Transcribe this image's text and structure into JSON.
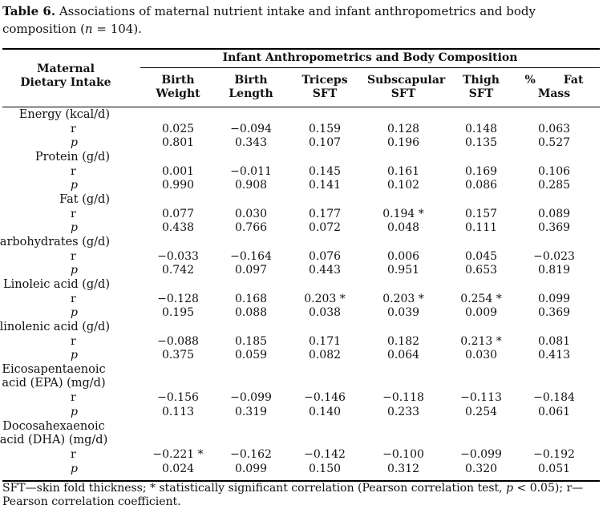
{
  "caption": {
    "label": "Table 6.",
    "text": " Associations of maternal nutrient intake and infant anthropometrics and body composition (",
    "n_symbol": "n",
    "n_text": " = 104)."
  },
  "header": {
    "row_header": "Maternal Dietary Intake",
    "group_header": "Infant Anthropometrics and Body Composition",
    "columns": [
      "Birth Weight",
      "Birth Length",
      "Triceps SFT",
      "Subscapular SFT",
      "Thigh SFT",
      "% Fat Mass"
    ]
  },
  "rows": [
    {
      "label": "Energy (kcal/d)",
      "r": [
        "0.025",
        "−0.094",
        "0.159",
        "0.128",
        "0.148",
        "0.063"
      ],
      "p": [
        "0.801",
        "0.343",
        "0.107",
        "0.196",
        "0.135",
        "0.527"
      ]
    },
    {
      "label": "Protein (g/d)",
      "r": [
        "0.001",
        "−0.011",
        "0.145",
        "0.161",
        "0.169",
        "0.106"
      ],
      "p": [
        "0.990",
        "0.908",
        "0.141",
        "0.102",
        "0.086",
        "0.285"
      ]
    },
    {
      "label": "Fat (g/d)",
      "r": [
        "0.077",
        "0.030",
        "0.177",
        "0.194 *",
        "0.157",
        "0.089"
      ],
      "p": [
        "0.438",
        "0.766",
        "0.072",
        "0.048",
        "0.111",
        "0.369"
      ]
    },
    {
      "label": "Carbohydrates (g/d)",
      "r": [
        "−0.033",
        "−0.164",
        "0.076",
        "0.006",
        "0.045",
        "−0.023"
      ],
      "p": [
        "0.742",
        "0.097",
        "0.443",
        "0.951",
        "0.653",
        "0.819"
      ]
    },
    {
      "label": "Linoleic acid (g/d)",
      "r": [
        "−0.128",
        "0.168",
        "0.203 *",
        "0.203 *",
        "0.254 *",
        "0.099"
      ],
      "p": [
        "0.195",
        "0.088",
        "0.038",
        "0.039",
        "0.009",
        "0.369"
      ]
    },
    {
      "label": "α-linolenic acid (g/d)",
      "r": [
        "−0.088",
        "0.185",
        "0.171",
        "0.182",
        "0.213 *",
        "0.081"
      ],
      "p": [
        "0.375",
        "0.059",
        "0.082",
        "0.064",
        "0.030",
        "0.413"
      ]
    },
    {
      "label": "Eicosapentaenoic acid (EPA) (mg/d)",
      "r": [
        "−0.156",
        "−0.099",
        "−0.146",
        "−0.118",
        "−0.113",
        "−0.184"
      ],
      "p": [
        "0.113",
        "0.319",
        "0.140",
        "0.233",
        "0.254",
        "0.061"
      ]
    },
    {
      "label": "Docosahexaenoic acid (DHA) (mg/d)",
      "r": [
        "−0.221 *",
        "−0.162",
        "−0.142",
        "−0.100",
        "−0.099",
        "−0.192"
      ],
      "p": [
        "0.024",
        "0.099",
        "0.150",
        "0.312",
        "0.320",
        "0.051"
      ]
    }
  ],
  "stat_labels": {
    "r": "r",
    "p": "p"
  },
  "footnote": {
    "part1": "SFT—skin fold thickness; * statistically significant correlation (Pearson correlation test, ",
    "p_symbol": "p",
    "part2": " < 0.05); r—Pearson correlation coefficient."
  }
}
